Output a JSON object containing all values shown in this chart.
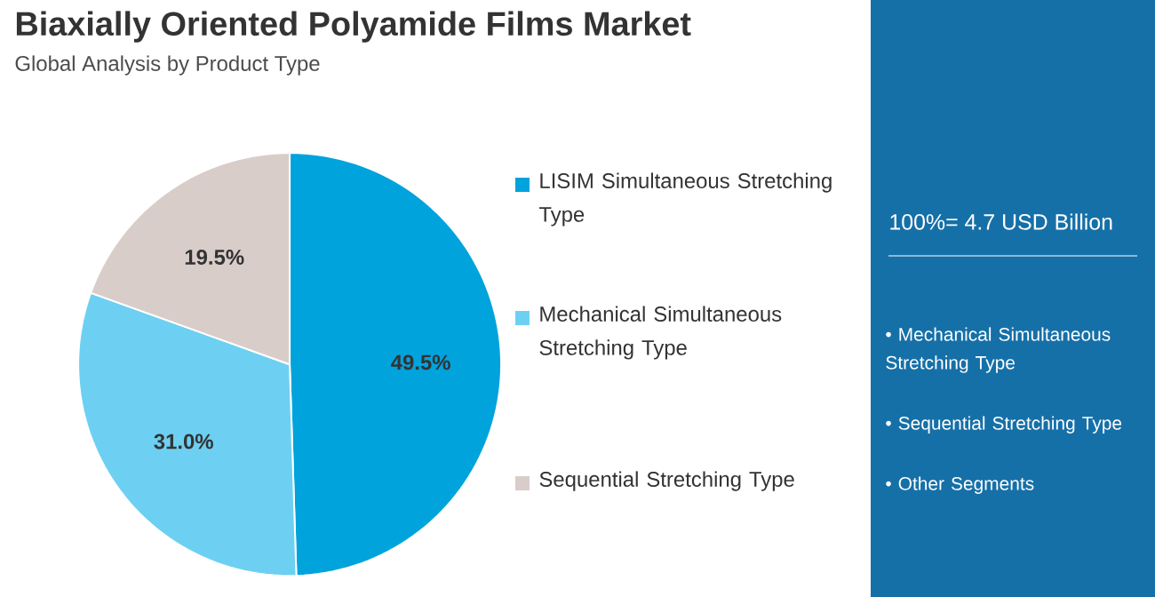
{
  "chart_data": {
    "type": "pie",
    "title": "Biaxially Oriented Polyamide Films Market",
    "subtitle": "Global Analysis by Product Type",
    "categories": [
      "LISIM Simultaneous Stretching Type",
      "Mechanical Simultaneous Stretching Type",
      "Sequential Stretching Type"
    ],
    "values": [
      49.5,
      31.0,
      19.5
    ],
    "value_labels": [
      "49.5%",
      "31.0%",
      "19.5%"
    ],
    "colors": [
      "#00a3dc",
      "#6dd0f2",
      "#d9cdc9"
    ],
    "legend": "right",
    "annotations": [
      "100%= 4.7 USD Billion",
      "• Mechanical Simultaneous Stretching Type",
      "• Sequential Stretching Type",
      "• Other Segments"
    ]
  }
}
